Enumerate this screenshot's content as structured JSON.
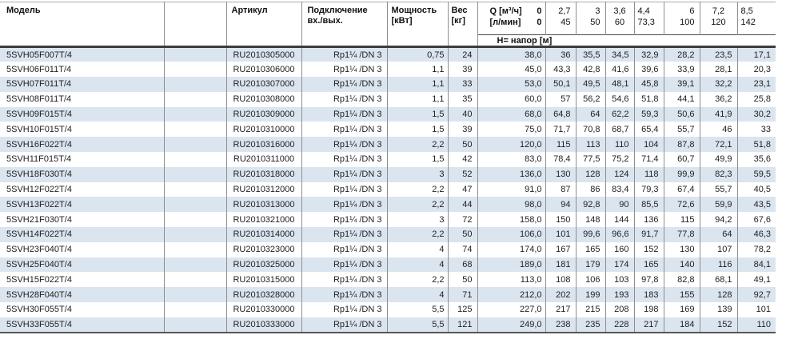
{
  "colors": {
    "row_stripe": "#dbe5f0",
    "grid_line": "#8e8e8e",
    "header_rule": "#3c3c3c",
    "bottom_rule": "#575757"
  },
  "table": {
    "header": {
      "model": "Модель",
      "article": "Артикул",
      "connection_line1": "Подключение",
      "connection_line2": "вх./вых.",
      "power_line1": "Мощность",
      "power_line2": "[кВт]",
      "weight_line1": "Вес",
      "weight_line2": "[кг]",
      "q_row1_label": "Q [м³/ч]",
      "q_row1_value": "0",
      "q_row2_label": "[л/мин]",
      "q_row2_value": "0",
      "head_label": "Н= напор [м]",
      "flow_columns": [
        {
          "q": "2,7",
          "lpm": "45"
        },
        {
          "q": "3",
          "lpm": "50"
        },
        {
          "q": "3,6",
          "lpm": "60"
        },
        {
          "q": "4,4",
          "lpm": "73,3"
        },
        {
          "q": "6",
          "lpm": "100"
        },
        {
          "q": "7,2",
          "lpm": "120"
        },
        {
          "q": "8,5",
          "lpm": "142"
        }
      ]
    },
    "rows": [
      {
        "model": "5SVH05F007T/4",
        "article": "RU2010305000",
        "connection": "Rp1¼ /DN 3",
        "power": "0,75",
        "weight": "24",
        "head": [
          "38,0",
          "36",
          "35,5",
          "34,5",
          "32,9",
          "28,2",
          "23,5",
          "17,1"
        ]
      },
      {
        "model": "5SVH06F011T/4",
        "article": "RU2010306000",
        "connection": "Rp1¼ /DN 3",
        "power": "1,1",
        "weight": "39",
        "head": [
          "45,0",
          "43,3",
          "42,8",
          "41,6",
          "39,6",
          "33,9",
          "28,1",
          "20,3"
        ]
      },
      {
        "model": "5SVH07F011T/4",
        "article": "RU2010307000",
        "connection": "Rp1¼ /DN 3",
        "power": "1,1",
        "weight": "33",
        "head": [
          "53,0",
          "50,1",
          "49,5",
          "48,1",
          "45,8",
          "39,1",
          "32,2",
          "23,1"
        ]
      },
      {
        "model": "5SVH08F011T/4",
        "article": "RU2010308000",
        "connection": "Rp1¼ /DN 3",
        "power": "1,1",
        "weight": "35",
        "head": [
          "60,0",
          "57",
          "56,2",
          "54,6",
          "51,8",
          "44,1",
          "36,2",
          "25,8"
        ]
      },
      {
        "model": "5SVH09F015T/4",
        "article": "RU2010309000",
        "connection": "Rp1¼ /DN 3",
        "power": "1,5",
        "weight": "40",
        "head": [
          "68,0",
          "64,8",
          "64",
          "62,2",
          "59,3",
          "50,6",
          "41,9",
          "30,2"
        ]
      },
      {
        "model": "5SVH10F015T/4",
        "article": "RU2010310000",
        "connection": "Rp1¼ /DN 3",
        "power": "1,5",
        "weight": "39",
        "head": [
          "75,0",
          "71,7",
          "70,8",
          "68,7",
          "65,4",
          "55,7",
          "46",
          "33"
        ]
      },
      {
        "model": "5SVH16F022T/4",
        "article": "RU2010316000",
        "connection": "Rp1¼ /DN 3",
        "power": "2,2",
        "weight": "50",
        "head": [
          "120,0",
          "115",
          "113",
          "110",
          "104",
          "87,8",
          "72,1",
          "51,8"
        ]
      },
      {
        "model": "5SVH11F015T/4",
        "article": "RU2010311000",
        "connection": "Rp1¼ /DN 3",
        "power": "1,5",
        "weight": "42",
        "head": [
          "83,0",
          "78,4",
          "77,5",
          "75,2",
          "71,4",
          "60,7",
          "49,9",
          "35,6"
        ]
      },
      {
        "model": "5SVH18F030T/4",
        "article": "RU2010318000",
        "connection": "Rp1¼ /DN 3",
        "power": "3",
        "weight": "52",
        "head": [
          "136,0",
          "130",
          "128",
          "124",
          "118",
          "99,9",
          "82,3",
          "59,5"
        ]
      },
      {
        "model": "5SVH12F022T/4",
        "article": "RU2010312000",
        "connection": "Rp1¼ /DN 3",
        "power": "2,2",
        "weight": "47",
        "head": [
          "91,0",
          "87",
          "86",
          "83,4",
          "79,3",
          "67,4",
          "55,7",
          "40,5"
        ]
      },
      {
        "model": "5SVH13F022T/4",
        "article": "RU2010313000",
        "connection": "Rp1¼ /DN 3",
        "power": "2,2",
        "weight": "44",
        "head": [
          "98,0",
          "94",
          "92,8",
          "90",
          "85,5",
          "72,6",
          "59,9",
          "43,5"
        ]
      },
      {
        "model": "5SVH21F030T/4",
        "article": "RU2010321000",
        "connection": "Rp1¼ /DN 3",
        "power": "3",
        "weight": "72",
        "head": [
          "158,0",
          "150",
          "148",
          "144",
          "136",
          "115",
          "94,2",
          "67,6"
        ]
      },
      {
        "model": "5SVH14F022T/4",
        "article": "RU2010314000",
        "connection": "Rp1¼ /DN 3",
        "power": "2,2",
        "weight": "50",
        "head": [
          "106,0",
          "101",
          "99,6",
          "96,6",
          "91,7",
          "77,8",
          "64",
          "46,3"
        ]
      },
      {
        "model": "5SVH23F040T/4",
        "article": "RU2010323000",
        "connection": "Rp1¼ /DN 3",
        "power": "4",
        "weight": "74",
        "head": [
          "174,0",
          "167",
          "165",
          "160",
          "152",
          "130",
          "107",
          "78,2"
        ]
      },
      {
        "model": "5SVH25F040T/4",
        "article": "RU2010325000",
        "connection": "Rp1¼ /DN 3",
        "power": "4",
        "weight": "68",
        "head": [
          "189,0",
          "181",
          "179",
          "174",
          "165",
          "140",
          "116",
          "84,1"
        ]
      },
      {
        "model": "5SVH15F022T/4",
        "article": "RU2010315000",
        "connection": "Rp1¼ /DN 3",
        "power": "2,2",
        "weight": "50",
        "head": [
          "113,0",
          "108",
          "106",
          "103",
          "97,8",
          "82,8",
          "68,1",
          "49,1"
        ]
      },
      {
        "model": "5SVH28F040T/4",
        "article": "RU2010328000",
        "connection": "Rp1¼ /DN 3",
        "power": "4",
        "weight": "71",
        "head": [
          "212,0",
          "202",
          "199",
          "193",
          "183",
          "155",
          "128",
          "92,7"
        ]
      },
      {
        "model": "5SVH30F055T/4",
        "article": "RU2010330000",
        "connection": "Rp1¼ /DN 3",
        "power": "5,5",
        "weight": "125",
        "head": [
          "227,0",
          "217",
          "215",
          "208",
          "198",
          "169",
          "139",
          "101"
        ]
      },
      {
        "model": "5SVH33F055T/4",
        "article": "RU2010333000",
        "connection": "Rp1¼ /DN 3",
        "power": "5,5",
        "weight": "121",
        "head": [
          "249,0",
          "238",
          "235",
          "228",
          "217",
          "184",
          "152",
          "110"
        ]
      }
    ]
  }
}
